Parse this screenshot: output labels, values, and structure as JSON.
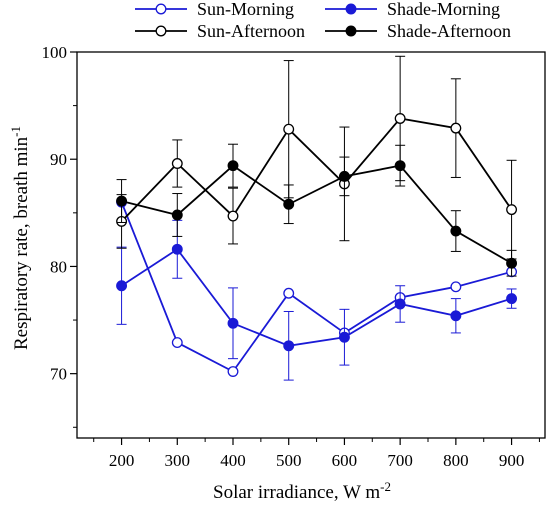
{
  "chart_data": {
    "type": "line",
    "title": "",
    "xlabel": "Solar irradiance, W m",
    "xlabel_sup": "-2",
    "ylabel": "Respiratory rate, breath min",
    "ylabel_sup": "-1",
    "x": [
      200,
      300,
      400,
      500,
      600,
      700,
      800,
      900
    ],
    "xticks": [
      "200",
      "300",
      "400",
      "500",
      "600",
      "700",
      "800",
      "900"
    ],
    "yticks": [
      "70",
      "80",
      "90",
      "100"
    ],
    "xlim": [
      120,
      960
    ],
    "ylim": [
      64,
      100
    ],
    "grid": false,
    "legend_position": "top",
    "series": [
      {
        "name": "Sun-Morning",
        "color": "#1a1ad6",
        "marker": "open-circle",
        "values": [
          86.0,
          72.9,
          70.2,
          77.5,
          73.8,
          77.1,
          78.1,
          79.5
        ],
        "errors": [
          null,
          null,
          null,
          null,
          null,
          null,
          null,
          null
        ]
      },
      {
        "name": "Shade-Morning",
        "color": "#1a1ad6",
        "marker": "filled-circle",
        "values": [
          78.2,
          81.6,
          74.7,
          72.6,
          73.4,
          76.5,
          75.4,
          77.0
        ],
        "errors": [
          3.6,
          2.7,
          3.3,
          3.2,
          2.6,
          1.7,
          1.6,
          0.9
        ]
      },
      {
        "name": "Sun-Afternoon",
        "color": "#000000",
        "marker": "open-circle",
        "values": [
          84.2,
          89.6,
          84.7,
          92.8,
          87.7,
          93.8,
          92.9,
          85.3
        ],
        "errors": [
          2.5,
          2.2,
          2.6,
          6.4,
          5.3,
          5.8,
          4.6,
          4.6
        ]
      },
      {
        "name": "Shade-Afternoon",
        "color": "#000000",
        "marker": "filled-circle",
        "values": [
          86.1,
          84.8,
          89.4,
          85.8,
          88.4,
          89.4,
          83.3,
          80.3
        ],
        "errors": [
          2.0,
          2.0,
          2.0,
          1.8,
          1.8,
          1.9,
          1.9,
          1.2
        ]
      }
    ]
  }
}
